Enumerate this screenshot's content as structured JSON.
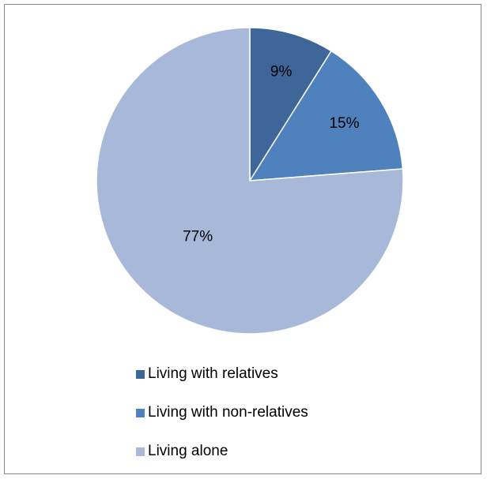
{
  "chart_data": {
    "type": "pie",
    "title": "",
    "categories": [
      "Living with relatives",
      "Living with non-relatives",
      "Living alone"
    ],
    "values": [
      9,
      15,
      77
    ],
    "value_labels": [
      "9%",
      "15%",
      "77%"
    ],
    "colors": [
      "#3f6698",
      "#4f81bd",
      "#a8b8d8"
    ],
    "start_angle_deg": 0,
    "direction": "clockwise",
    "legend_position": "bottom"
  }
}
